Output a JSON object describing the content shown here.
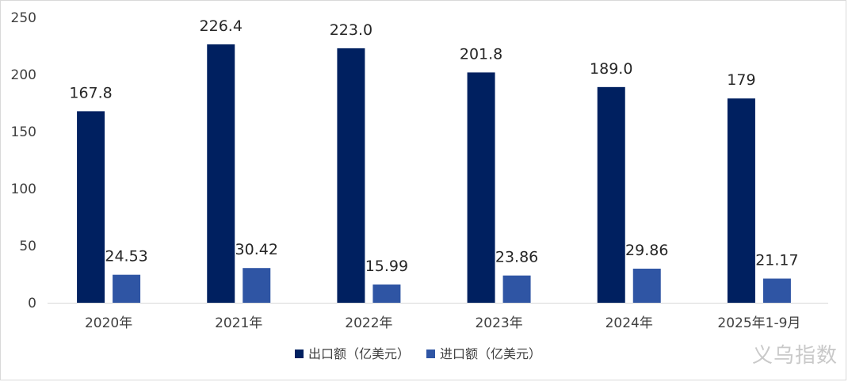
{
  "chart_data": {
    "type": "bar",
    "categories": [
      "2020年",
      "2021年",
      "2022年",
      "2023年",
      "2024年",
      "2025年1-9月"
    ],
    "series": [
      {
        "name": "出口额（亿美元）",
        "color": "#002060",
        "values": [
          167.8,
          226.4,
          223.0,
          201.8,
          189.0,
          179
        ],
        "labels": [
          "167.8",
          "226.4",
          "223.0",
          "201.8",
          "189.0",
          "179"
        ]
      },
      {
        "name": "进口额（亿美元）",
        "color": "#2F55A4",
        "values": [
          24.53,
          30.42,
          15.99,
          23.86,
          29.86,
          21.17
        ],
        "labels": [
          "24.53",
          "30.42",
          "15.99",
          "23.86",
          "29.86",
          "21.17"
        ]
      }
    ],
    "ylim": [
      0,
      250
    ],
    "yticks": [
      0,
      50,
      100,
      150,
      200,
      250
    ],
    "grid": false,
    "legend": "bottom-center"
  },
  "watermark": "义乌指数"
}
